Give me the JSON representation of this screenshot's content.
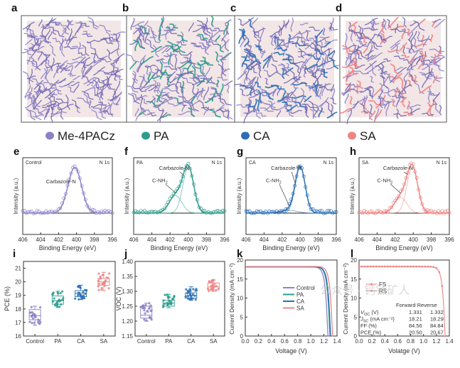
{
  "colors": {
    "Me-4PACz": "#8b82c6",
    "Control": "#8b82c6",
    "PA": "#2e9c8c",
    "CA": "#2a6fb5",
    "SA": "#ee8585",
    "axis": "#333333",
    "grid_dot": "#d9b8b8",
    "baseline": "#222222"
  },
  "panel_labels": [
    "a",
    "b",
    "c",
    "d",
    "e",
    "f",
    "g",
    "h",
    "i",
    "j",
    "k",
    "l"
  ],
  "legend_top": {
    "items": [
      {
        "label": "Me-4PACz",
        "color_key": "Me-4PACz"
      },
      {
        "label": "PA",
        "color_key": "PA"
      },
      {
        "label": "CA",
        "color_key": "CA"
      },
      {
        "label": "SA",
        "color_key": "SA"
      }
    ]
  },
  "chart_data": [
    {
      "panel": "a",
      "type": "other",
      "title": "",
      "description": "Molecular simulation snapshot: Me-4PACz only",
      "species": [
        "Me-4PACz"
      ]
    },
    {
      "panel": "b",
      "type": "other",
      "title": "",
      "description": "Molecular simulation snapshot: Me-4PACz + PA",
      "species": [
        "Me-4PACz",
        "PA"
      ]
    },
    {
      "panel": "c",
      "type": "other",
      "title": "",
      "description": "Molecular simulation snapshot: Me-4PACz + CA",
      "species": [
        "Me-4PACz",
        "CA"
      ]
    },
    {
      "panel": "d",
      "type": "other",
      "title": "",
      "description": "Molecular simulation snapshot: Me-4PACz + SA",
      "species": [
        "Me-4PACz",
        "SA"
      ]
    },
    {
      "panel": "e",
      "type": "line",
      "sample": "Control",
      "core_level": "N 1s",
      "xlabel": "Binding Energy (eV)",
      "ylabel": "Intensity (a.u.)",
      "xlim": [
        406,
        396
      ],
      "xticks": [
        406,
        404,
        402,
        400,
        398,
        396
      ],
      "peaks": [
        {
          "label": "Carbazole-N",
          "center": 400.2,
          "height": 1.0,
          "width": 0.75
        }
      ],
      "baseline": 0.12
    },
    {
      "panel": "f",
      "type": "line",
      "sample": "PA",
      "core_level": "N 1s",
      "xlabel": "Binding Energy (eV)",
      "ylabel": "Intensity (a.u.)",
      "xlim": [
        406,
        396
      ],
      "xticks": [
        406,
        404,
        402,
        400,
        398,
        396
      ],
      "peaks": [
        {
          "label": "Carbazole-N",
          "center": 400.0,
          "height": 1.0,
          "width": 0.6
        },
        {
          "label": "C-NH2",
          "center": 401.4,
          "height": 0.38,
          "width": 0.7
        }
      ],
      "baseline": 0.1
    },
    {
      "panel": "g",
      "type": "line",
      "sample": "CA",
      "core_level": "N 1s",
      "xlabel": "Binding Energy (eV)",
      "ylabel": "Intensity (a.u.)",
      "xlim": [
        406,
        396
      ],
      "xticks": [
        406,
        404,
        402,
        400,
        398,
        396
      ],
      "peaks": [
        {
          "label": "Carbazole-N",
          "center": 400.0,
          "height": 1.0,
          "width": 0.55
        },
        {
          "label": "C-NH2",
          "center": 401.2,
          "height": 0.06,
          "width": 0.9
        }
      ],
      "baseline": 0.1
    },
    {
      "panel": "h",
      "type": "line",
      "sample": "SA",
      "core_level": "N 1s",
      "xlabel": "Binding Energy (eV)",
      "ylabel": "Intensity (a.u.)",
      "xlim": [
        406,
        396
      ],
      "xticks": [
        406,
        404,
        402,
        400,
        398,
        396
      ],
      "peaks": [
        {
          "label": "Carbazole-N",
          "center": 400.1,
          "height": 1.0,
          "width": 0.6
        },
        {
          "label": "C-NH2",
          "center": 401.4,
          "height": 0.34,
          "width": 0.7
        }
      ],
      "baseline": 0.1
    },
    {
      "panel": "i",
      "type": "box",
      "xlabel": "",
      "ylabel": "PCE (%)",
      "categories": [
        "Control",
        "PA",
        "CA",
        "SA"
      ],
      "ylim": [
        16,
        21.5
      ],
      "yticks": [
        16,
        17,
        18,
        19,
        20,
        21
      ],
      "series": [
        {
          "name": "Control",
          "min": 16.8,
          "q1": 17.2,
          "median": 17.5,
          "q3": 17.95,
          "max": 18.2
        },
        {
          "name": "PA",
          "min": 18.1,
          "q1": 18.35,
          "median": 18.6,
          "q3": 18.95,
          "max": 19.3
        },
        {
          "name": "CA",
          "min": 18.7,
          "q1": 18.9,
          "median": 19.15,
          "q3": 19.35,
          "max": 19.75
        },
        {
          "name": "SA",
          "min": 19.35,
          "q1": 19.75,
          "median": 20.0,
          "q3": 20.25,
          "max": 20.7
        }
      ]
    },
    {
      "panel": "j",
      "type": "box",
      "xlabel": "",
      "ylabel": "V_OC (V)",
      "categories": [
        "Control",
        "PA",
        "CA",
        "SA"
      ],
      "ylim": [
        1.15,
        1.4
      ],
      "yticks": [
        1.15,
        1.2,
        1.25,
        1.3,
        1.35,
        1.4
      ],
      "series": [
        {
          "name": "Control",
          "min": 1.2,
          "q1": 1.21,
          "median": 1.22,
          "q3": 1.25,
          "max": 1.26
        },
        {
          "name": "PA",
          "min": 1.245,
          "q1": 1.25,
          "median": 1.26,
          "q3": 1.27,
          "max": 1.29
        },
        {
          "name": "CA",
          "min": 1.27,
          "q1": 1.277,
          "median": 1.285,
          "q3": 1.295,
          "max": 1.315
        },
        {
          "name": "SA",
          "min": 1.3,
          "q1": 1.305,
          "median": 1.315,
          "q3": 1.328,
          "max": 1.338
        }
      ]
    },
    {
      "panel": "k",
      "type": "line",
      "xlabel": "Voltage (V)",
      "ylabel": "Current Density (mA cm^-2)",
      "xlim": [
        0,
        1.4
      ],
      "ylim": [
        0,
        20
      ],
      "xticks": [
        0.0,
        0.2,
        0.4,
        0.6,
        0.8,
        1.0,
        1.2,
        1.4
      ],
      "yticks": [
        0,
        5,
        10,
        15,
        20
      ],
      "legend_position": "center-right",
      "series": [
        {
          "name": "Control",
          "jsc": 18.2,
          "voc": 1.26
        },
        {
          "name": "PA",
          "jsc": 18.2,
          "voc": 1.29
        },
        {
          "name": "CA",
          "jsc": 18.2,
          "voc": 1.3
        },
        {
          "name": "SA",
          "jsc": 18.3,
          "voc": 1.33
        }
      ]
    },
    {
      "panel": "l",
      "type": "line",
      "xlabel": "Volatge (V)",
      "ylabel": "Current Density (mA cm^-2)",
      "xlim": [
        0,
        1.4
      ],
      "ylim": [
        0,
        20
      ],
      "xticks": [
        0.0,
        0.2,
        0.4,
        0.6,
        0.8,
        1.0,
        1.2,
        1.4
      ],
      "yticks": [
        0,
        5,
        10,
        15,
        20
      ],
      "legend_position": "top-left",
      "series": [
        {
          "name": "FS",
          "jsc": 18.21,
          "voc": 1.331
        },
        {
          "name": "RS",
          "jsc": 18.29,
          "voc": 1.332
        }
      ],
      "table": {
        "headers": [
          "",
          "Forward",
          "Reverse"
        ],
        "rows": [
          [
            "V_OC (V)",
            "1.331",
            "1.332"
          ],
          [
            "J_SC (mA cm^-2)",
            "18.21",
            "18.29"
          ],
          [
            "FF (%)",
            "84.56",
            "84.84"
          ],
          [
            "PCE (%)",
            "20.50",
            "20.67"
          ]
        ]
      }
    }
  ],
  "watermark": "公众号 · 钙钛矿人"
}
